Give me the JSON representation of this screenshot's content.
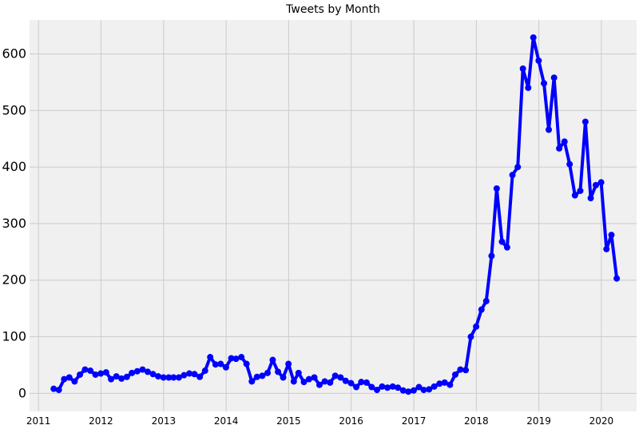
{
  "chart_data": {
    "type": "line",
    "title": "Tweets by Month",
    "xlabel": "",
    "ylabel": "",
    "grid": true,
    "colors": {
      "background": "#f0f0f0",
      "grid": "#cbcbcb",
      "line": "#0000ff"
    },
    "xlim": [
      "2010-11-10",
      "2020-07-25"
    ],
    "ylim": [
      -32,
      660
    ],
    "x_ticks": [
      "2011",
      "2012",
      "2013",
      "2014",
      "2015",
      "2016",
      "2017",
      "2018",
      "2019",
      "2020"
    ],
    "y_ticks": [
      0,
      100,
      200,
      300,
      400,
      500,
      600
    ],
    "series": [
      {
        "x": [
          "2011-03-31",
          "2011-04-30",
          "2011-05-31",
          "2011-06-30",
          "2011-07-31",
          "2011-08-31",
          "2011-09-30",
          "2011-10-31",
          "2011-11-30",
          "2011-12-31",
          "2012-01-31",
          "2012-02-29",
          "2012-03-31",
          "2012-04-30",
          "2012-05-31",
          "2012-06-30",
          "2012-07-31",
          "2012-08-31",
          "2012-09-30",
          "2012-10-31",
          "2012-11-30",
          "2012-12-31",
          "2013-01-31",
          "2013-02-28",
          "2013-03-31",
          "2013-04-30",
          "2013-05-31",
          "2013-06-30",
          "2013-07-31",
          "2013-08-31",
          "2013-09-30",
          "2013-10-31",
          "2013-11-30",
          "2013-12-31",
          "2014-01-31",
          "2014-02-28",
          "2014-03-31",
          "2014-04-30",
          "2014-05-31",
          "2014-06-30",
          "2014-07-31",
          "2014-08-31",
          "2014-09-30",
          "2014-10-31",
          "2014-11-30",
          "2014-12-31",
          "2015-01-31",
          "2015-02-28",
          "2015-03-31",
          "2015-04-30",
          "2015-05-31",
          "2015-06-30",
          "2015-07-31",
          "2015-08-31",
          "2015-09-30",
          "2015-10-31",
          "2015-11-30",
          "2015-12-31",
          "2016-01-31",
          "2016-02-29",
          "2016-03-31",
          "2016-04-30",
          "2016-05-31",
          "2016-06-30",
          "2016-07-31",
          "2016-08-31",
          "2016-09-30",
          "2016-10-31",
          "2016-11-30",
          "2016-12-31",
          "2017-01-31",
          "2017-02-28",
          "2017-03-31",
          "2017-04-30",
          "2017-05-31",
          "2017-06-30",
          "2017-07-31",
          "2017-08-31",
          "2017-09-30",
          "2017-10-31",
          "2017-11-30",
          "2017-12-31",
          "2018-01-31",
          "2018-02-28",
          "2018-03-31",
          "2018-04-30",
          "2018-05-31",
          "2018-06-30",
          "2018-07-31",
          "2018-08-31",
          "2018-09-30",
          "2018-10-31",
          "2018-11-30",
          "2018-12-31",
          "2019-01-31",
          "2019-02-28",
          "2019-03-31",
          "2019-04-30",
          "2019-05-31",
          "2019-06-30",
          "2019-07-31",
          "2019-08-31",
          "2019-09-30",
          "2019-10-31",
          "2019-11-30",
          "2019-12-31",
          "2020-01-31",
          "2020-02-29",
          "2020-03-31"
        ],
        "values": [
          8,
          6,
          25,
          28,
          21,
          33,
          42,
          40,
          33,
          35,
          37,
          25,
          30,
          26,
          29,
          36,
          39,
          42,
          38,
          34,
          30,
          28,
          28,
          28,
          28,
          32,
          35,
          34,
          29,
          40,
          64,
          51,
          52,
          46,
          62,
          61,
          64,
          52,
          21,
          29,
          31,
          36,
          59,
          38,
          28,
          52,
          21,
          36,
          20,
          25,
          28,
          15,
          21,
          19,
          31,
          28,
          22,
          18,
          11,
          20,
          19,
          11,
          6,
          12,
          10,
          12,
          10,
          5,
          3,
          5,
          11,
          6,
          7,
          12,
          17,
          19,
          15,
          33,
          42,
          41,
          100,
          118,
          148,
          163,
          243,
          362,
          268,
          258,
          386,
          400,
          574,
          540,
          629,
          588,
          548,
          466,
          558,
          433,
          445,
          405,
          350,
          358,
          480,
          345,
          368,
          373,
          255,
          280,
          203
        ]
      }
    ]
  }
}
